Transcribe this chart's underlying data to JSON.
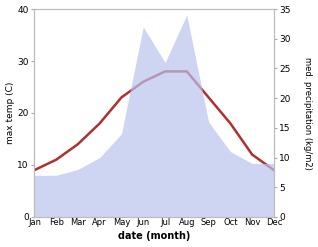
{
  "months": [
    "Jan",
    "Feb",
    "Mar",
    "Apr",
    "May",
    "Jun",
    "Jul",
    "Aug",
    "Sep",
    "Oct",
    "Nov",
    "Dec"
  ],
  "max_temp": [
    9,
    11,
    14,
    18,
    23,
    26,
    28,
    28,
    23,
    18,
    12,
    9
  ],
  "precipitation": [
    7,
    7,
    8,
    10,
    14,
    32,
    26,
    34,
    16,
    11,
    9,
    9
  ],
  "temp_color": "#b03030",
  "precip_fill_color": "#b8c4ee",
  "xlabel": "date (month)",
  "ylabel_left": "max temp (C)",
  "ylabel_right": "med. precipitation (kg/m2)",
  "ylim_left": [
    0,
    40
  ],
  "ylim_right": [
    0,
    35
  ],
  "yticks_left": [
    0,
    10,
    20,
    30,
    40
  ],
  "yticks_right": [
    0,
    5,
    10,
    15,
    20,
    25,
    30,
    35
  ],
  "background_color": "#ffffff",
  "temp_linewidth": 1.8
}
